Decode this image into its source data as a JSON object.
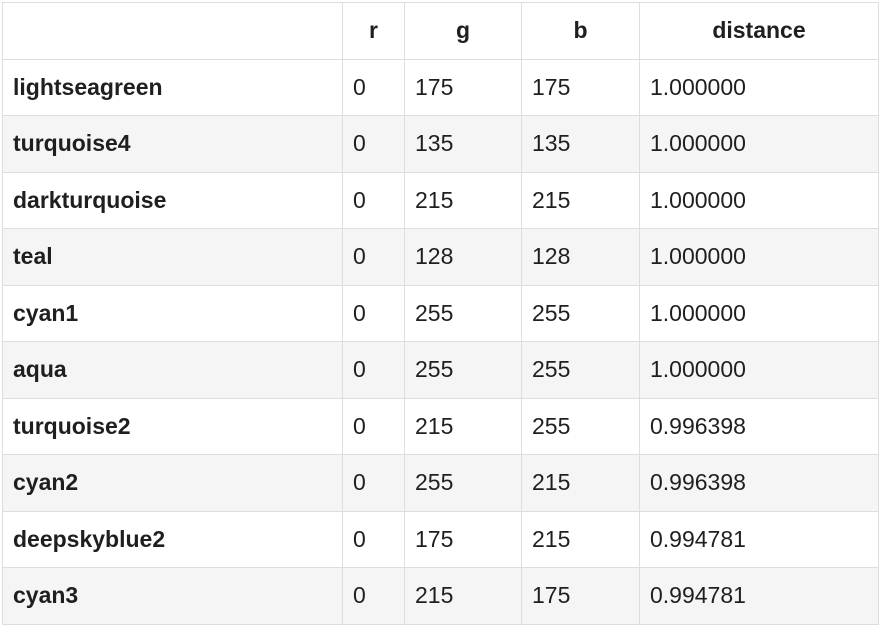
{
  "table": {
    "columns": [
      "",
      "r",
      "g",
      "b",
      "distance"
    ],
    "rows": [
      {
        "name": "lightseagreen",
        "r": "0",
        "g": "175",
        "b": "175",
        "distance": "1.000000"
      },
      {
        "name": "turquoise4",
        "r": "0",
        "g": "135",
        "b": "135",
        "distance": "1.000000"
      },
      {
        "name": "darkturquoise",
        "r": "0",
        "g": "215",
        "b": "215",
        "distance": "1.000000"
      },
      {
        "name": "teal",
        "r": "0",
        "g": "128",
        "b": "128",
        "distance": "1.000000"
      },
      {
        "name": "cyan1",
        "r": "0",
        "g": "255",
        "b": "255",
        "distance": "1.000000"
      },
      {
        "name": "aqua",
        "r": "0",
        "g": "255",
        "b": "255",
        "distance": "1.000000"
      },
      {
        "name": "turquoise2",
        "r": "0",
        "g": "215",
        "b": "255",
        "distance": "0.996398"
      },
      {
        "name": "cyan2",
        "r": "0",
        "g": "255",
        "b": "215",
        "distance": "0.996398"
      },
      {
        "name": "deepskyblue2",
        "r": "0",
        "g": "175",
        "b": "215",
        "distance": "0.994781"
      },
      {
        "name": "cyan3",
        "r": "0",
        "g": "215",
        "b": "175",
        "distance": "0.994781"
      }
    ]
  }
}
